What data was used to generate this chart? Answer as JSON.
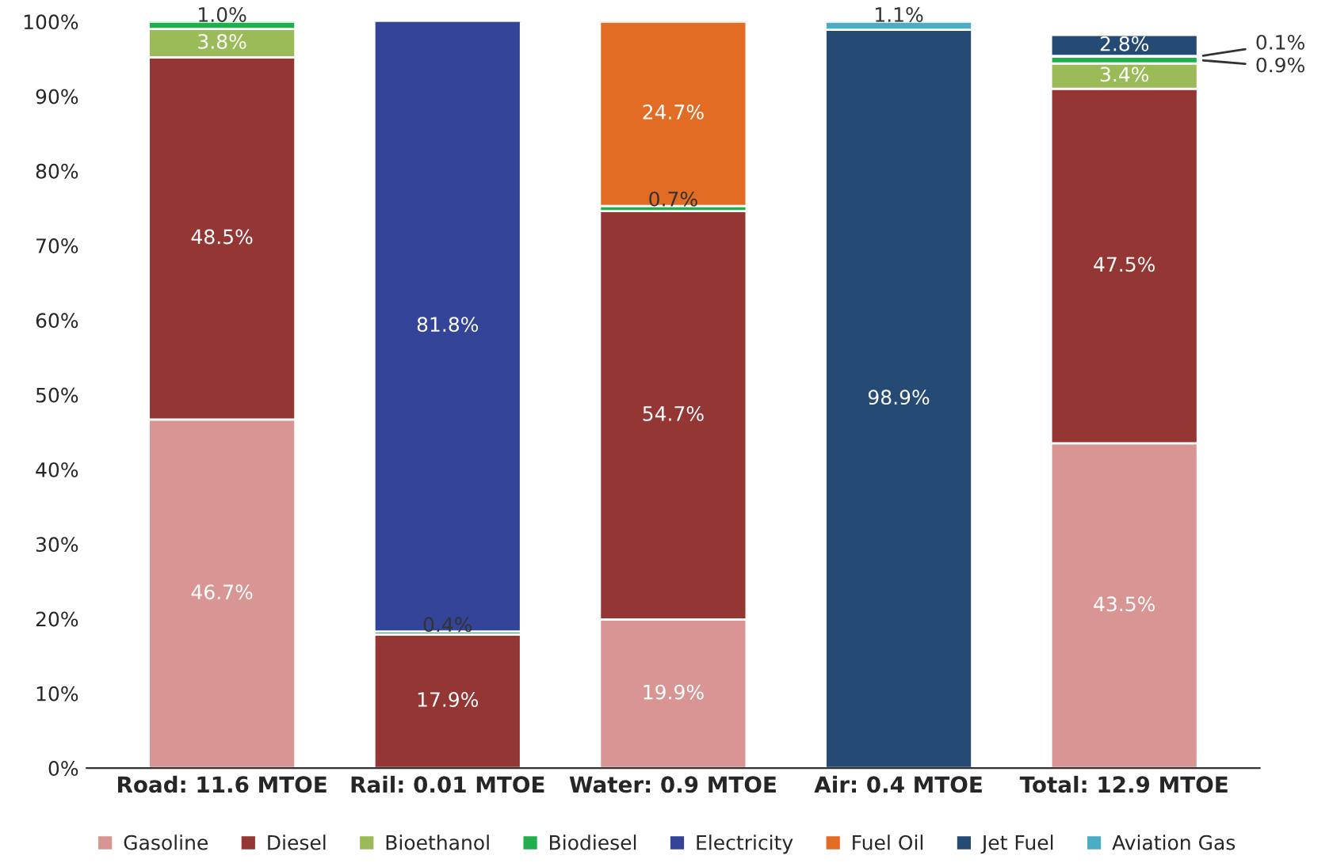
{
  "chart_data": {
    "type": "bar",
    "stacked": true,
    "categories": [
      "Road: 11.6 MTOE",
      "Rail: 0.01 MTOE",
      "Water: 0.9 MTOE",
      "Air: 0.4 MTOE",
      "Total: 12.9 MTOE"
    ],
    "series": [
      {
        "name": "Gasoline",
        "color": "#d99594",
        "values": [
          46.7,
          null,
          19.9,
          null,
          43.5
        ],
        "value_labels": [
          "46.7%",
          null,
          "19.9%",
          null,
          "43.5%"
        ]
      },
      {
        "name": "Diesel",
        "color": "#943634",
        "values": [
          48.5,
          17.9,
          54.7,
          null,
          47.5
        ],
        "value_labels": [
          "48.5%",
          "17.9%",
          "54.7%",
          null,
          "47.5%"
        ]
      },
      {
        "name": "Bioethanol",
        "color": "#9bbb59",
        "values": [
          3.8,
          null,
          null,
          null,
          3.4
        ],
        "value_labels": [
          "3.8%",
          null,
          null,
          null,
          "3.4%"
        ]
      },
      {
        "name": "Biodiesel",
        "color": "#1fb04b",
        "values": [
          1.0,
          0.4,
          0.7,
          null,
          0.9
        ],
        "value_labels": [
          "1.0%",
          "0.4%",
          "0.7%",
          null,
          "0.9%"
        ]
      },
      {
        "name": "Electricity",
        "color": "#334499",
        "values": [
          null,
          81.8,
          null,
          null,
          0.1
        ],
        "value_labels": [
          null,
          "81.8%",
          null,
          null,
          "0.1%"
        ]
      },
      {
        "name": "Fuel Oil",
        "color": "#e36c25",
        "values": [
          null,
          null,
          24.7,
          null,
          null
        ],
        "value_labels": [
          null,
          null,
          "24.7%",
          null,
          null
        ]
      },
      {
        "name": "Jet Fuel",
        "color": "#254a74",
        "values": [
          null,
          null,
          null,
          98.9,
          2.8
        ],
        "value_labels": [
          null,
          null,
          null,
          "98.9%",
          "2.8%"
        ]
      },
      {
        "name": "Aviation Gas",
        "color": "#4bacc6",
        "values": [
          null,
          null,
          null,
          1.1,
          null
        ],
        "value_labels": [
          null,
          null,
          null,
          "1.1%",
          null
        ]
      }
    ],
    "ylim": [
      0,
      100
    ],
    "yticks": [
      {
        "value": 0,
        "label": "0%"
      },
      {
        "value": 10,
        "label": "10%"
      },
      {
        "value": 20,
        "label": "20%"
      },
      {
        "value": 30,
        "label": "30%"
      },
      {
        "value": 40,
        "label": "40%"
      },
      {
        "value": 50,
        "label": "50%"
      },
      {
        "value": 60,
        "label": "60%"
      },
      {
        "value": 70,
        "label": "70%"
      },
      {
        "value": 80,
        "label": "80%"
      },
      {
        "value": 90,
        "label": "90%"
      },
      {
        "value": 100,
        "label": "100%"
      }
    ],
    "grid": false,
    "legend": "bottom"
  }
}
